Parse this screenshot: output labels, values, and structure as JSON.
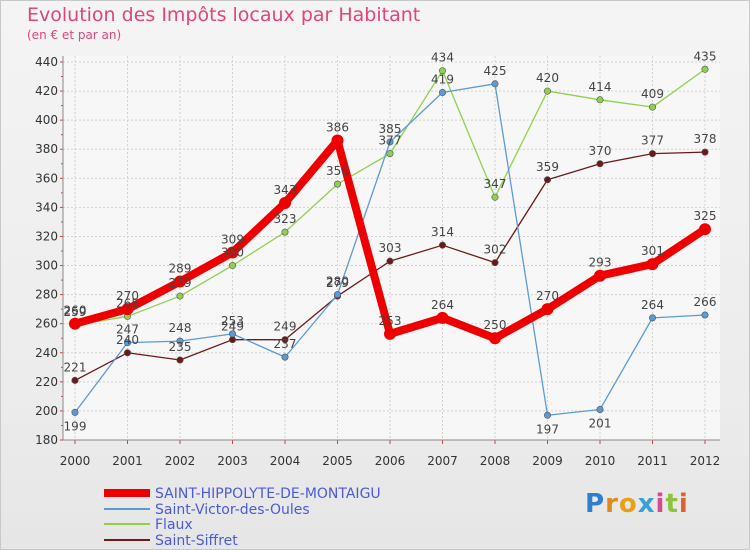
{
  "chart_data": {
    "type": "line",
    "title": "Evolution des Impôts locaux par Habitant",
    "subtitle": "(en € et par an)",
    "xlabel": "",
    "ylabel": "",
    "ylim": [
      180,
      440
    ],
    "yticks": [
      180,
      200,
      220,
      240,
      260,
      280,
      300,
      320,
      340,
      360,
      380,
      400,
      420,
      440
    ],
    "categories": [
      "2000",
      "2001",
      "2002",
      "2003",
      "2004",
      "2005",
      "2006",
      "2007",
      "2008",
      "2009",
      "2010",
      "2011",
      "2012"
    ],
    "grid": true,
    "legend_position": "bottom-left",
    "series": [
      {
        "name": "SAINT-HIPPOLYTE-DE-MONTAIGU",
        "color": "#ee0000",
        "values": [
          260,
          270,
          289,
          309,
          343,
          386,
          253,
          264,
          250,
          270,
          293,
          301,
          325
        ]
      },
      {
        "name": "Saint-Victor-des-Oules",
        "color": "#5b9bd5",
        "values": [
          199,
          247,
          248,
          253,
          237,
          280,
          385,
          419,
          425,
          197,
          201,
          264,
          266
        ]
      },
      {
        "name": "Flaux",
        "color": "#8fd14f",
        "values": [
          259,
          265,
          279,
          300,
          323,
          356,
          377,
          434,
          347,
          420,
          414,
          409,
          435
        ]
      },
      {
        "name": "Saint-Siffret",
        "color": "#6b1a1a",
        "values": [
          221,
          240,
          235,
          249,
          249,
          279,
          303,
          314,
          302,
          359,
          370,
          377,
          378
        ]
      }
    ]
  },
  "branding": {
    "logo_letters": [
      "P",
      "r",
      "o",
      "x",
      "i",
      "t",
      "i"
    ],
    "logo_colors": [
      "#2f7fd0",
      "#e08a1e",
      "#e8a01a",
      "#3aa0d8",
      "#d84a8f",
      "#8cc43f",
      "#e2602b"
    ]
  }
}
